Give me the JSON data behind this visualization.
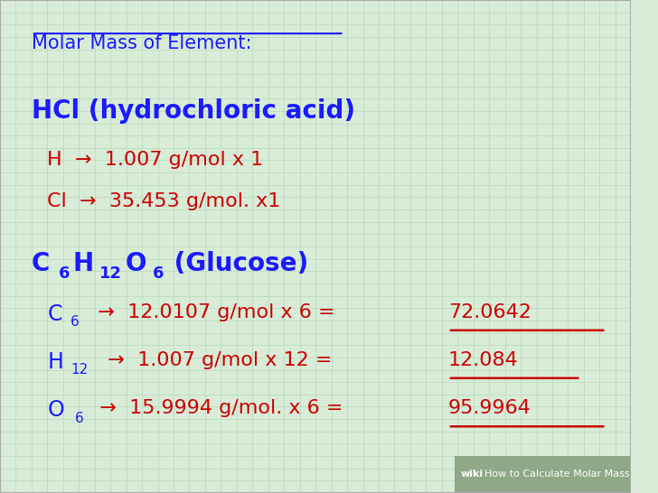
{
  "bg_color": "#d8ecd8",
  "grid_color": "#b8d8b8",
  "blue_color": "#1a1aff",
  "red_color": "#cc0000",
  "title": "Molar Mass of Element:",
  "footer_text": "How to Calculate Molar Mass",
  "wiki_text": "wiki",
  "figsize": [
    7.28,
    5.46
  ],
  "dpi": 100
}
